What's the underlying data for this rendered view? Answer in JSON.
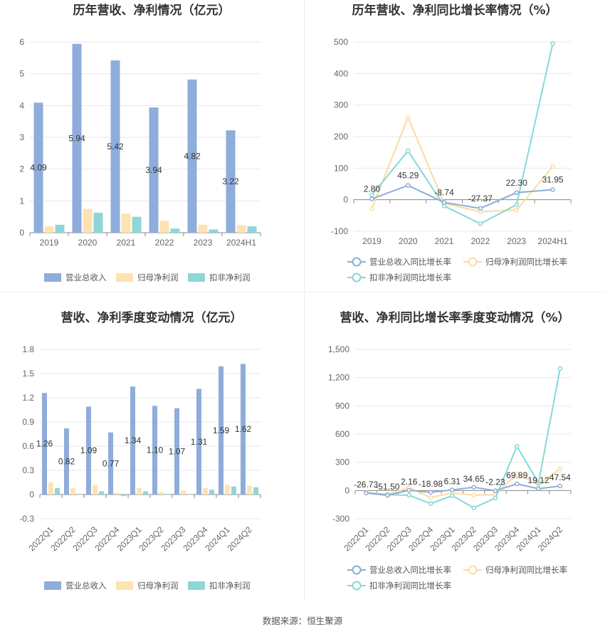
{
  "colors": {
    "revenue": "#8eadda",
    "parent_profit": "#fde3b1",
    "deducted_profit": "#8fd6d6",
    "revenue_line": "#8eadda",
    "parent_line": "#fcdba0",
    "deducted_line": "#86d8d8",
    "grid": "#e5e7ec",
    "axis": "#8a8a8a"
  },
  "footer": {
    "source": "数据来源：恒生聚源"
  },
  "chart_data": [
    {
      "id": "annual_amount",
      "type": "bar",
      "title": "历年营收、净利情况（亿元）",
      "categories": [
        "2019",
        "2020",
        "2021",
        "2022",
        "2023",
        "2024H1"
      ],
      "series": [
        {
          "name": "营业总收入",
          "values": [
            4.09,
            5.94,
            5.42,
            3.94,
            4.82,
            3.22
          ],
          "labels": [
            "4.09",
            "5.94",
            "5.42",
            "3.94",
            "4.82",
            "3.22"
          ]
        },
        {
          "name": "归母净利润",
          "values": [
            0.2,
            0.75,
            0.6,
            0.37,
            0.25,
            0.24
          ]
        },
        {
          "name": "扣非净利润",
          "values": [
            0.25,
            0.63,
            0.5,
            0.13,
            0.1,
            0.2
          ]
        }
      ],
      "ylim": [
        0,
        6
      ],
      "yticks": [
        "0",
        "1",
        "2",
        "3",
        "4",
        "5",
        "6"
      ],
      "grid": true,
      "legend": "bottom"
    },
    {
      "id": "annual_growth",
      "type": "line",
      "title": "历年营收、净利同比增长率情况（%）",
      "categories": [
        "2019",
        "2020",
        "2021",
        "2022",
        "2023",
        "2024H1"
      ],
      "series": [
        {
          "name": "营业总收入同比增长率",
          "values": [
            2.8,
            45.29,
            -8.74,
            -27.37,
            22.3,
            31.95
          ],
          "labels": [
            "2.80",
            "45.29",
            "-8.74",
            "-27.37",
            "22.30",
            "31.95"
          ]
        },
        {
          "name": "归母净利润同比增长率",
          "values": [
            -28,
            261,
            -12,
            -38,
            -33,
            105
          ]
        },
        {
          "name": "扣非净利润同比增长率",
          "values": [
            15,
            155,
            -20,
            -76,
            -16,
            495
          ]
        }
      ],
      "ylim": [
        -100,
        500
      ],
      "yticks": [
        "-100",
        "0",
        "100",
        "200",
        "300",
        "400",
        "500"
      ],
      "grid": true,
      "legend": "bottom"
    },
    {
      "id": "quarterly_amount",
      "type": "bar",
      "title": "营收、净利季度变动情况（亿元）",
      "categories": [
        "2022Q1",
        "2022Q2",
        "2022Q3",
        "2022Q4",
        "2023Q1",
        "2023Q2",
        "2023Q3",
        "2023Q4",
        "2024Q1",
        "2024Q2"
      ],
      "series": [
        {
          "name": "营业总收入",
          "values": [
            1.26,
            0.82,
            1.09,
            0.77,
            1.34,
            1.1,
            1.07,
            1.31,
            1.59,
            1.62
          ],
          "labels": [
            "1.26",
            "0.82",
            "1.09",
            "0.77",
            "1.34",
            "1.10",
            "1.07",
            "1.31",
            "1.59",
            "1.62"
          ]
        },
        {
          "name": "归母净利润",
          "values": [
            0.15,
            0.08,
            0.12,
            0.02,
            0.08,
            0.03,
            0.05,
            0.08,
            0.12,
            0.11
          ]
        },
        {
          "name": "扣非净利润",
          "values": [
            0.08,
            0.0,
            0.04,
            -0.02,
            0.04,
            0.0,
            0.0,
            0.06,
            0.1,
            0.09
          ]
        }
      ],
      "ylim": [
        -0.3,
        1.8
      ],
      "yticks": [
        "-0.3",
        "0",
        "0.3",
        "0.6",
        "0.9",
        "1.2",
        "1.5",
        "1.8"
      ],
      "grid": true,
      "legend": "bottom"
    },
    {
      "id": "quarterly_growth",
      "type": "line",
      "title": "营收、净利同比增长率季度变动情况（%）",
      "categories": [
        "2022Q1",
        "2022Q2",
        "2022Q3",
        "2022Q4",
        "2023Q1",
        "2023Q2",
        "2023Q3",
        "2023Q4",
        "2024Q1",
        "2024Q2"
      ],
      "series": [
        {
          "name": "营业总收入同比增长率",
          "values": [
            -26.73,
            -51.5,
            2.16,
            -18.98,
            6.31,
            34.65,
            -2.23,
            69.89,
            19.12,
            47.54
          ],
          "labels": [
            "-26.73",
            "-51.50",
            "2.16",
            "-18.98",
            "6.31",
            "34.65",
            "-2.23",
            "69.89",
            "19.12",
            "47.54"
          ]
        },
        {
          "name": "归母净利润同比增长率",
          "values": [
            -20,
            -40,
            30,
            -75,
            -25,
            -50,
            -45,
            180,
            60,
            230
          ]
        },
        {
          "name": "扣非净利润同比增长率",
          "values": [
            -25,
            -45,
            -50,
            -140,
            -55,
            -185,
            -80,
            470,
            80,
            1295
          ]
        }
      ],
      "ylim": [
        -300,
        1500
      ],
      "yticks": [
        "-300",
        "0",
        "300",
        "600",
        "900",
        "1,200",
        "1,500"
      ],
      "grid": true,
      "legend": "bottom"
    }
  ]
}
